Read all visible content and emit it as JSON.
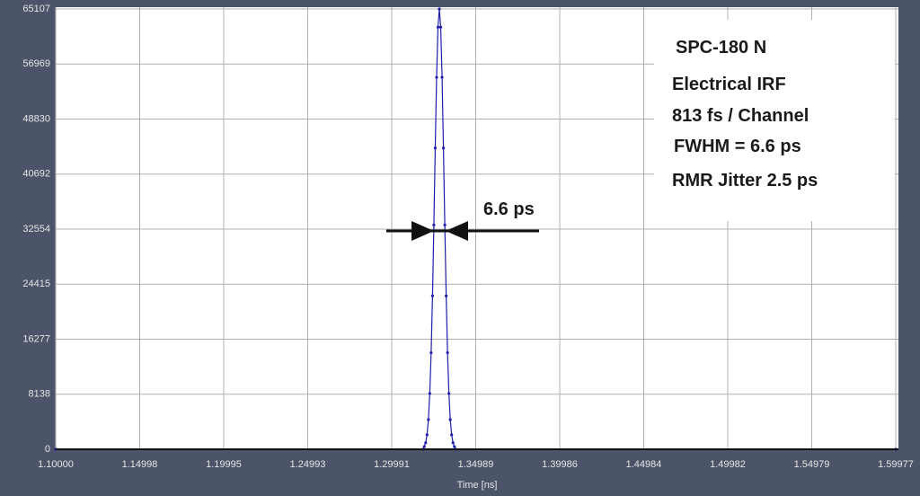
{
  "chart_data": {
    "type": "line",
    "xlabel": "Time [ns]",
    "annotations": [
      "SPC-180 N",
      "Electrical IRF",
      "813 fs / Channel",
      "FWHM = 6.6 ps",
      "RMR Jitter 2.5 ps",
      "6.6 ps"
    ],
    "x": [
      1.1,
      1.31848,
      1.3193,
      1.32011,
      1.32092,
      1.32174,
      1.32255,
      1.32336,
      1.32418,
      1.32499,
      1.3258,
      1.32661,
      1.32743,
      1.32824,
      1.32905,
      1.32987,
      1.33068,
      1.33149,
      1.33231,
      1.33312,
      1.33393,
      1.33474,
      1.33556,
      1.33637,
      1.33718,
      1.338,
      1.59977
    ],
    "series": [
      {
        "color": "#1f1fa8",
        "values": [
          0,
          0,
          397,
          964,
          2142,
          4382,
          8249,
          14278,
          22696,
          33166,
          44553,
          55003,
          62418,
          65107,
          62418,
          55003,
          44553,
          33166,
          22696,
          14278,
          8249,
          4382,
          2142,
          964,
          397,
          0,
          0
        ]
      }
    ],
    "xlim": [
      1.1,
      1.59977
    ],
    "xticks": [
      {
        "value": 1.1,
        "label": "1.10000"
      },
      1.14998,
      1.19995,
      1.24993,
      1.29991,
      1.34989,
      1.39986,
      1.44984,
      1.49982,
      1.54979,
      1.59977
    ],
    "ylim": [
      0,
      65107
    ],
    "yticks": [
      0,
      8138,
      16277,
      24415,
      32554,
      40692,
      48830,
      56969,
      65107
    ],
    "grid": true
  }
}
